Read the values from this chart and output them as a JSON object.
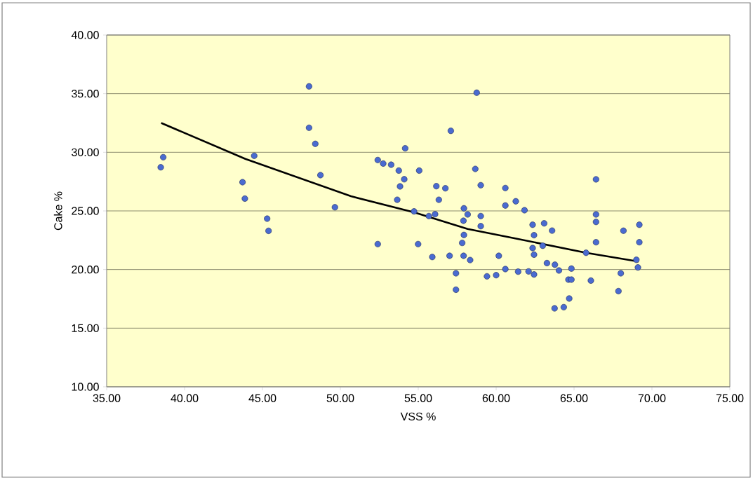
{
  "chart_data": {
    "type": "scatter",
    "xlabel": "VSS %",
    "ylabel": "Cake %",
    "xlim": [
      35,
      75
    ],
    "ylim": [
      10,
      40
    ],
    "xticks": [
      {
        "value": 35,
        "label": "35.00"
      },
      {
        "value": 40,
        "label": "40.00"
      },
      {
        "value": 45,
        "label": "45.00"
      },
      {
        "value": 50,
        "label": "50.00"
      },
      {
        "value": 55,
        "label": "55.00"
      },
      {
        "value": 60,
        "label": "60.00"
      },
      {
        "value": 65,
        "label": "65.00"
      },
      {
        "value": 70,
        "label": "70.00"
      },
      {
        "value": 75,
        "label": "75.00"
      }
    ],
    "yticks": [
      {
        "value": 10,
        "label": "10.00"
      },
      {
        "value": 15,
        "label": "15.00"
      },
      {
        "value": 20,
        "label": "20.00"
      },
      {
        "value": 25,
        "label": "25.00"
      },
      {
        "value": 30,
        "label": "30.00"
      },
      {
        "value": 35,
        "label": "35.00"
      },
      {
        "value": 40,
        "label": "40.00"
      }
    ],
    "grid": "y",
    "series": [
      {
        "color": "#4a6bd0",
        "marker": "circle",
        "x": [
          38.63,
          38.47,
          44.47,
          43.72,
          43.87,
          45.3,
          45.39,
          47.99,
          47.99,
          48.39,
          48.72,
          49.65,
          52.4,
          52.75,
          53.26,
          53.75,
          54.16,
          54.1,
          53.83,
          53.65,
          55.06,
          54.73,
          52.4,
          54.99,
          56.16,
          56.74,
          56.32,
          55.68,
          56.08,
          55.9,
          57.01,
          57.09,
          58.75,
          58.66,
          59.01,
          57.93,
          58.17,
          57.9,
          59.01,
          59.01,
          57.93,
          57.82,
          57.91,
          58.33,
          57.42,
          57.42,
          59.41,
          60.0,
          60.17,
          60.59,
          60.59,
          60.59,
          61.26,
          61.82,
          61.41,
          62.08,
          62.43,
          62.34,
          62.43,
          62.34,
          62.43,
          63.08,
          63.59,
          62.99,
          63.26,
          63.77,
          64.03,
          63.75,
          66.41,
          66.41,
          66.41,
          66.41,
          68.17,
          69.19,
          69.19,
          69.0,
          69.1,
          65.77,
          68.0,
          67.85,
          66.08,
          64.83,
          64.64,
          64.83,
          64.69,
          64.34
        ],
        "values": [
          29.58,
          28.72,
          29.7,
          27.45,
          26.05,
          24.34,
          23.3,
          35.62,
          32.09,
          30.72,
          28.05,
          25.31,
          29.34,
          29.04,
          28.94,
          28.44,
          30.34,
          27.7,
          27.09,
          25.95,
          28.44,
          24.96,
          22.17,
          22.17,
          27.11,
          26.93,
          25.95,
          24.56,
          24.72,
          21.07,
          21.17,
          31.83,
          35.08,
          28.58,
          27.19,
          25.22,
          24.7,
          24.16,
          24.56,
          23.7,
          22.95,
          22.27,
          21.17,
          20.81,
          19.68,
          18.28,
          19.42,
          19.52,
          21.17,
          20.04,
          26.95,
          25.46,
          25.82,
          25.06,
          19.82,
          19.84,
          19.58,
          23.82,
          22.93,
          21.83,
          21.27,
          23.94,
          23.32,
          22.03,
          20.55,
          20.41,
          19.92,
          16.69,
          27.69,
          24.7,
          24.06,
          22.33,
          23.31,
          23.82,
          22.33,
          20.83,
          20.18,
          21.43,
          19.68,
          18.16,
          19.06,
          20.08,
          19.14,
          19.14,
          17.53,
          16.79
        ]
      },
      {
        "type": "line",
        "color": "#000000",
        "marker": "none",
        "x": [
          38.5,
          43.9,
          50.68,
          54.73,
          58.17,
          61.17,
          65.77,
          69.14
        ],
        "values": [
          32.5,
          29.44,
          26.25,
          24.88,
          23.46,
          22.67,
          21.43,
          20.68
        ]
      }
    ]
  }
}
